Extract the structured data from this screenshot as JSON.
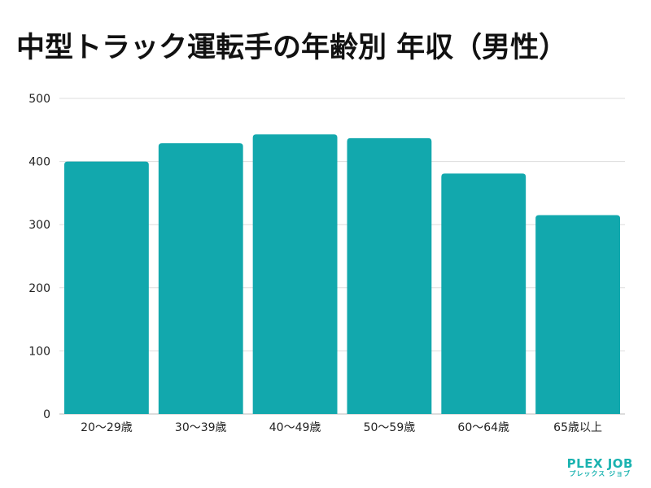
{
  "chart_data": {
    "type": "bar",
    "title": "中型トラック運転手の年齢別 年収（男性）",
    "categories": [
      "20〜29歳",
      "30〜39歳",
      "40〜49歳",
      "50〜59歳",
      "60〜64歳",
      "65歳以上"
    ],
    "values": [
      400,
      429,
      443,
      437,
      381,
      315
    ],
    "ylim": [
      0,
      500
    ],
    "yticks": [
      0,
      100,
      200,
      300,
      400,
      500
    ],
    "grid": true,
    "bar_color": "#12a8ad",
    "grid_color": "#dddddd"
  },
  "brand": {
    "name": "PLEX JOB",
    "sub": "プレックス ジョブ",
    "color": "#1bb3b0"
  }
}
